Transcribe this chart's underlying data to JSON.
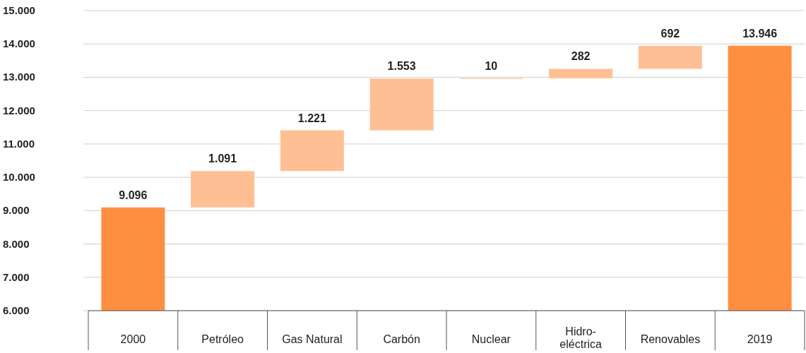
{
  "chart_data": {
    "type": "bar",
    "categories": [
      "2000",
      "Petróleo",
      "Gas Natural",
      "Carbón",
      "Nuclear",
      "Hidro-eléctrica",
      "Renovables",
      "2019"
    ],
    "values": [
      9096,
      1091,
      1221,
      1553,
      10,
      282,
      692,
      13946
    ],
    "base": [
      null,
      9096,
      10187,
      11408,
      12961,
      12971,
      13253,
      null
    ],
    "colors": [
      "#ff8f40",
      "#ffbf94",
      "#ffbf94",
      "#ffbf94",
      "#ffbf94",
      "#ffbf94",
      "#ffbf94",
      "#ff8f40"
    ],
    "value_labels": [
      "9.096",
      "1.091",
      "1.221",
      "1.553",
      "10",
      "282",
      "692",
      "13.946"
    ],
    "ylim": [
      6000,
      15000
    ],
    "yticks": [
      {
        "value": 6000,
        "label": "6.000"
      },
      {
        "value": 7000,
        "label": "7.000"
      },
      {
        "value": 8000,
        "label": "8.000"
      },
      {
        "value": 9000,
        "label": "9.000"
      },
      {
        "value": 10000,
        "label": "10.000"
      },
      {
        "value": 11000,
        "label": "11.000"
      },
      {
        "value": 12000,
        "label": "12.000"
      },
      {
        "value": 13000,
        "label": "13.000"
      },
      {
        "value": 14000,
        "label": "14.000"
      },
      {
        "value": 15000,
        "label": "15.000"
      }
    ],
    "grid": "y"
  }
}
